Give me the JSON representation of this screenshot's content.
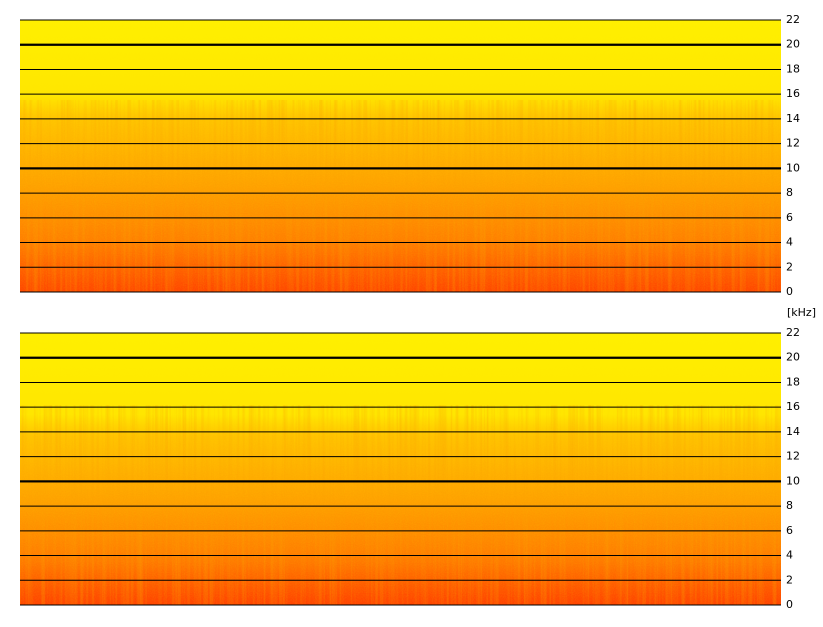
{
  "chart_data": [
    {
      "type": "spectrogram",
      "ylim": [
        0,
        22
      ],
      "yticks": [
        0,
        2,
        4,
        6,
        8,
        10,
        12,
        14,
        16,
        18,
        20,
        22
      ],
      "major_yticks": [
        10,
        20
      ],
      "ylabel": "[kHz]"
    },
    {
      "type": "spectrogram",
      "ylim": [
        0,
        22
      ],
      "yticks": [
        0,
        2,
        4,
        6,
        8,
        10,
        12,
        14,
        16,
        18,
        20,
        22
      ],
      "major_yticks": [
        10,
        20
      ]
    }
  ]
}
